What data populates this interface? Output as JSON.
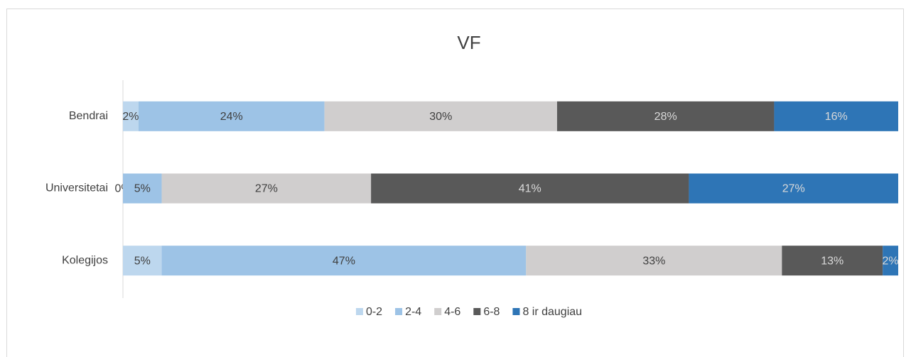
{
  "chart_data": {
    "type": "stacked-bar-horizontal",
    "title": "VF",
    "categories": [
      "Bendrai",
      "Universitetai",
      "Kolegijos"
    ],
    "series": [
      {
        "name": "0-2",
        "color": "#bdd7ee",
        "values": [
          2,
          0,
          5
        ],
        "value_labels": [
          "2%",
          "0%",
          "5%"
        ]
      },
      {
        "name": "2-4",
        "color": "#9dc3e6",
        "values": [
          24,
          5,
          47
        ],
        "value_labels": [
          "24%",
          "5%",
          "47%"
        ]
      },
      {
        "name": "4-6",
        "color": "#d0cece",
        "values": [
          30,
          27,
          33
        ],
        "value_labels": [
          "30%",
          "27%",
          "33%"
        ]
      },
      {
        "name": "6-8",
        "color": "#595959",
        "values": [
          28,
          41,
          13
        ],
        "value_labels": [
          "28%",
          "41%",
          "13%"
        ]
      },
      {
        "name": "8 ir daugiau",
        "color": "#2e75b6",
        "values": [
          16,
          27,
          2
        ],
        "value_labels": [
          "16%",
          "27%",
          "2%"
        ]
      }
    ],
    "xlim": [
      0,
      100
    ],
    "legend": "bottom"
  }
}
